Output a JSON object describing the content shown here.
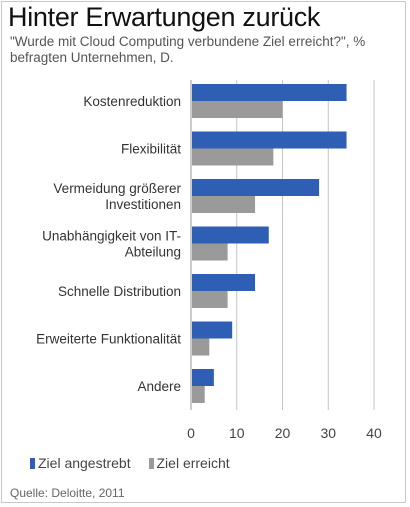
{
  "title": "Hinter Erwartungen zurück",
  "subtitle": "\"Wurde mit Cloud Computing verbundene Ziel erreicht?\", % befragten Unternehmen, D.",
  "source": "Quelle: Deloitte, 2011",
  "colors": {
    "angestrebt": "#2f5eb5",
    "erreicht": "#9a9a9a",
    "grid": "#c4c4c4"
  },
  "chart_data": {
    "type": "bar",
    "orientation": "horizontal",
    "categories": [
      [
        "Kostenreduktion"
      ],
      [
        "Flexibilität"
      ],
      [
        "Vermeidung größerer",
        "Investitionen"
      ],
      [
        "Unabhängigkeit von IT-",
        "Abteilung"
      ],
      [
        "Schnelle Distribution"
      ],
      [
        "Erweiterte Funktionalität"
      ],
      [
        "Andere"
      ]
    ],
    "series": [
      {
        "name": "Ziel angestrebt",
        "values": [
          34,
          34,
          28,
          17,
          14,
          9,
          5
        ]
      },
      {
        "name": "Ziel erreicht",
        "values": [
          20,
          18,
          14,
          8,
          8,
          4,
          3
        ]
      }
    ],
    "xlim": [
      0,
      40
    ],
    "xticks": [
      "0",
      "10",
      "20",
      "30",
      "40"
    ],
    "grid": true,
    "legend": "bottom"
  }
}
